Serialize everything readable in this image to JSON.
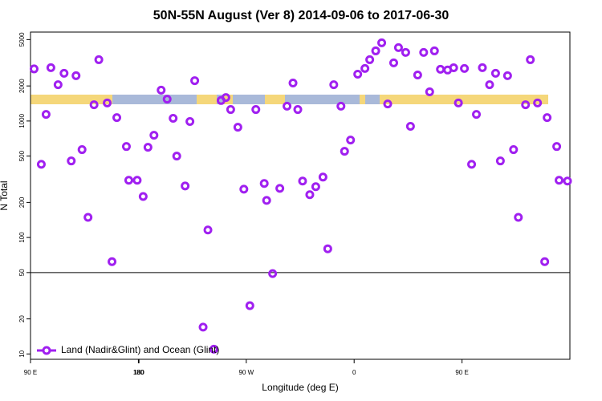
{
  "chart_data": {
    "type": "scatter",
    "title": "50N-55N August (Ver 8)   2014-09-06 to 2017-06-30",
    "xlabel": "Longitude (deg E)",
    "ylabel": "N Total",
    "xlim": [
      90,
      540
    ],
    "xticks": [
      {
        "value": 90,
        "label": "90 E"
      },
      180,
      {
        "value": 270,
        "label": "90 W"
      },
      {
        "value": 360,
        "label": "0"
      },
      {
        "value": 450,
        "label": "90 E"
      },
      180.5
    ],
    "ylim": [
      9,
      5800
    ],
    "log_y": true,
    "yticks": [
      10,
      20,
      50,
      100,
      200,
      500,
      1000,
      2000,
      5000
    ],
    "hline": 50,
    "legend": "bottom-left",
    "series": [
      {
        "name": "Land (Nadir&Glint) and Ocean (Glint)",
        "color": "#a020f0",
        "x": [
          93,
          99,
          103,
          107,
          113,
          118,
          124,
          128,
          133,
          138,
          143,
          147,
          154,
          158,
          162,
          170,
          172,
          179,
          184,
          188,
          193,
          199,
          204,
          209,
          212,
          219,
          223,
          227,
          234,
          238,
          243,
          249,
          253,
          257,
          263,
          268,
          273,
          278,
          285,
          287,
          292,
          298,
          304,
          309,
          313,
          317,
          323,
          328,
          334,
          338,
          343,
          349,
          352,
          357,
          363,
          369,
          373,
          378,
          383,
          388,
          393,
          397,
          403,
          407,
          413,
          418,
          423,
          427,
          432,
          438,
          443,
          447,
          452,
          458,
          462,
          467,
          473,
          478,
          482,
          488,
          493,
          497,
          503,
          507,
          513,
          519,
          521,
          529,
          531,
          538
        ],
        "values": [
          2800,
          425,
          1140,
          2870,
          2050,
          2570,
          454,
          2450,
          568,
          149,
          1380,
          3360,
          1430,
          62,
          1070,
          604,
          310,
          310,
          225,
          595,
          755,
          1840,
          1540,
          1055,
          500,
          277,
          990,
          2220,
          17,
          116,
          11,
          1500,
          1590,
          1255,
          885,
          260,
          26,
          1255,
          291,
          208,
          49,
          264,
          1340,
          2120,
          1255,
          305,
          233,
          273,
          330,
          80,
          2050,
          1340,
          550,
          686,
          2525,
          2825,
          3360,
          4000,
          4690,
          1400,
          3155,
          4265,
          3880,
          900,
          2485,
          3880,
          1780,
          4000,
          2780,
          2740,
          2865,
          1430,
          2825,
          425,
          1140,
          2870,
          2050,
          2570,
          454,
          2450,
          568,
          149,
          1380,
          3360,
          1430,
          62,
          1070,
          604,
          310,
          305
        ]
      }
    ]
  }
}
